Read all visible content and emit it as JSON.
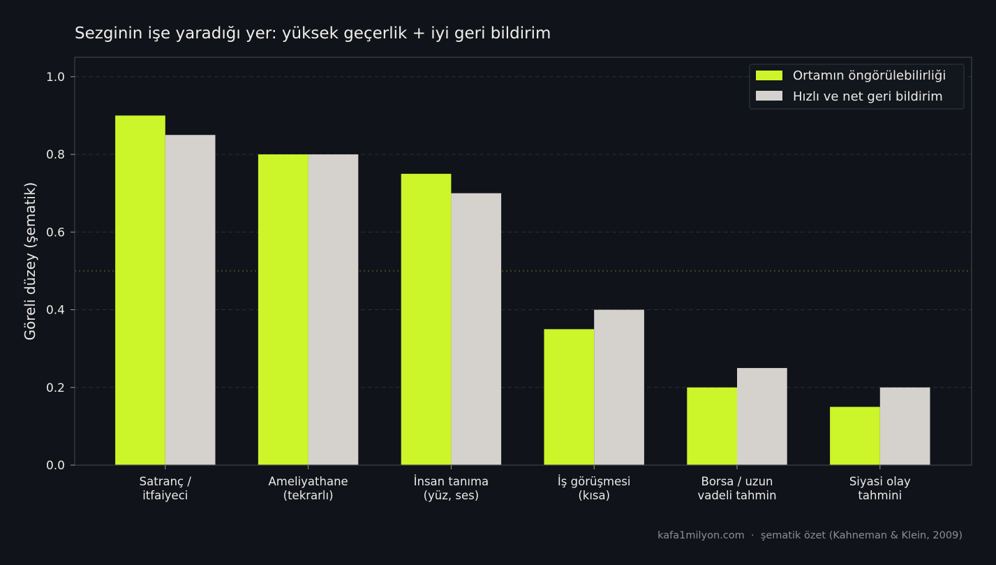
{
  "chart_data": {
    "type": "bar",
    "title": "Sezginin işe yaradığı yer: yüksek geçerlik + iyi geri bildirim",
    "xlabel": "",
    "ylabel": "Göreli düzey (şematik)",
    "ylim": [
      0,
      1.05
    ],
    "yticks": [
      "0.0",
      "0.2",
      "0.4",
      "0.6",
      "0.8",
      "1.0"
    ],
    "grid": true,
    "reference_line": 0.5,
    "legend_position": "top-right",
    "categories": [
      [
        "Satranç /",
        "itfaiyeci"
      ],
      [
        "Ameliyathane",
        "(tekrarlı)"
      ],
      [
        "İnsan tanıma",
        "(yüz, ses)"
      ],
      [
        "İş görüşmesi",
        "(kısa)"
      ],
      [
        "Borsa / uzun",
        "vadeli tahmin"
      ],
      [
        "Siyasi olay",
        "tahmini"
      ]
    ],
    "series": [
      {
        "name": "Ortamın öngörülebilirliği",
        "color": "#ccf52a",
        "values": [
          0.9,
          0.8,
          0.75,
          0.35,
          0.2,
          0.15
        ]
      },
      {
        "name": "Hızlı ve net geri bildirim",
        "color": "#d5d2cd",
        "values": [
          0.85,
          0.8,
          0.7,
          0.4,
          0.25,
          0.2
        ]
      }
    ]
  },
  "footer": {
    "text": "kafa1milyon.com  ·  şematik özet (Kahneman & Klein, 2009)"
  },
  "colors": {
    "background": "#10131a",
    "grid": "#2a2e36",
    "reference_line": "#3c4a1c",
    "axis": "#3a3e46"
  }
}
